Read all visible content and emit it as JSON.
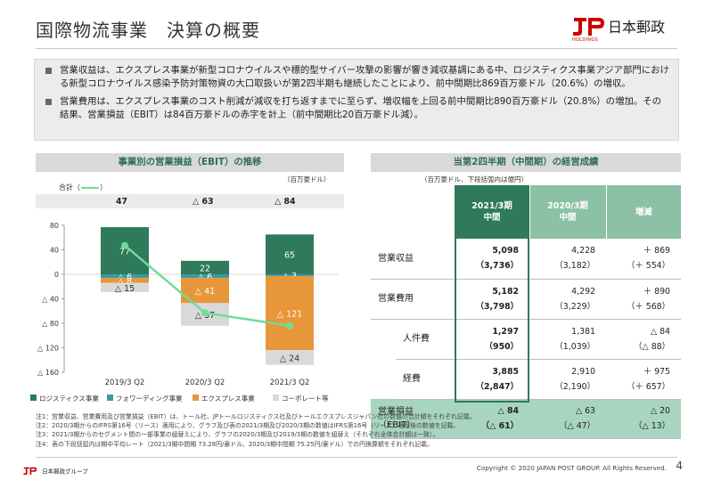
{
  "header": {
    "title": "国際物流事業　決算の概要",
    "logo_text": "日本郵政",
    "logo_sub": "HOLDINGS"
  },
  "summary": {
    "bullet1": "営業収益は、エクスプレス事業が新型コロナウイルスや標的型サイバー攻撃の影響が響き減収基調にある中、ロジスティクス事業アジア部門における新型コロナウイルス感染予防対策物資の大口取扱いが第2四半期も継続したことにより、前中間期比869百万豪ドル（20.6%）の増収。",
    "bullet2": "営業費用は、エクスプレス事業のコスト削減が減収を打ち返すまでに至らず、増収幅を上回る前中間期比890百万豪ドル（20.8%）の増加。その結果、営業損益（EBIT）は84百万豪ドルの赤字を計上（前中間期比20百万豪ドル減）。"
  },
  "left_section": {
    "header": "事業別の営業損益（EBIT）の推移",
    "unit": "（百万豪ドル）",
    "total_label": "合計（",
    "total_label_end": "）",
    "totals": [
      "47",
      "△ 63",
      "△ 84"
    ]
  },
  "chart_data": {
    "type": "bar",
    "stacked": true,
    "categories": [
      "2019/3 Q2",
      "2020/3 Q2",
      "2021/3 Q2"
    ],
    "series": [
      {
        "name": "ロジスティクス事業",
        "color": "#2e7a5a",
        "values": [
          77,
          22,
          65
        ],
        "labels": [
          "77",
          "22",
          "65"
        ]
      },
      {
        "name": "フォワーディング事業",
        "color": "#3a9aa8",
        "values": [
          -6,
          -6,
          -3
        ],
        "labels": [
          "△ 6",
          "△ 6",
          "△ 3"
        ]
      },
      {
        "name": "エクスプレス事業",
        "color": "#e8963a",
        "values": [
          -8,
          -41,
          -121
        ],
        "labels": [
          "△ 8",
          "△ 41",
          "△ 121"
        ]
      },
      {
        "name": "コーポレート等",
        "color": "#d9d9d9",
        "values": [
          -15,
          -37,
          -24
        ],
        "labels": [
          "△ 15",
          "△ 37",
          "△ 24"
        ]
      }
    ],
    "total_line": {
      "color": "#6fdc9b",
      "values": [
        47,
        -63,
        -84
      ]
    },
    "ylim": [
      -160,
      80
    ],
    "yticks": [
      80,
      40,
      0,
      -40,
      -80,
      -120,
      -160
    ],
    "ytick_labels": [
      "80",
      "40",
      "0",
      "△ 40",
      "△ 80",
      "△ 120",
      "△ 160"
    ],
    "grid": false,
    "legend_position": "bottom"
  },
  "right_section": {
    "header": "当第2四半期（中間期）の経営成績",
    "unit": "（百万豪ドル、下段括弧内は億円）",
    "columns": [
      {
        "line1": "2021/3期",
        "line2": "中間"
      },
      {
        "line1": "2020/3期",
        "line2": "中間"
      },
      {
        "line1": "増減",
        "line2": ""
      }
    ],
    "rows": [
      {
        "label": "営業収益",
        "type": "main",
        "cur": "5,098",
        "cur_jpy": "（3,736）",
        "prev": "4,228",
        "prev_jpy": "（3,182）",
        "diff": "＋ 869",
        "diff_jpy": "（＋ 554）"
      },
      {
        "label": "営業費用",
        "type": "main",
        "cur": "5,182",
        "cur_jpy": "（3,798）",
        "prev": "4,292",
        "prev_jpy": "（3,229）",
        "diff": "＋ 890",
        "diff_jpy": "（＋ 568）"
      },
      {
        "label": "人件費",
        "type": "sub",
        "cur": "1,297",
        "cur_jpy": "（950）",
        "prev": "1,381",
        "prev_jpy": "（1,039）",
        "diff": "△ 84",
        "diff_jpy": "（△ 88）"
      },
      {
        "label": "経費",
        "type": "sub",
        "cur": "3,885",
        "cur_jpy": "（2,847）",
        "prev": "2,910",
        "prev_jpy": "（2,190）",
        "diff": "＋ 975",
        "diff_jpy": "（＋ 657）"
      },
      {
        "label": "営業損益",
        "label2": "（EBIT）",
        "type": "ebit",
        "cur": "△ 84",
        "cur_jpy": "（△ 61）",
        "prev": "△ 63",
        "prev_jpy": "（△ 47）",
        "diff": "△ 20",
        "diff_jpy": "（△ 13）"
      }
    ]
  },
  "notes": [
    "注1：営業収益、営業費用及び営業損益（EBIT）は、トール社、JPトールロジスティクス社及びトールエクスプレスジャパン社の数値の合計額をそれぞれ記載。",
    "注2：2020/3期からのIFRS第16号（リース）適用により、グラフ及び表の2021/3期及び2020/3期の数値はIFRS第16号（リース）適用後の数値を記載。",
    "注3：2021/3期からのセグメント間の一部事業の組替えにより、グラフの2020/3期及び2019/3期の数値を組替え（それぞれ全体合計額は一致）。",
    "注4：表の下段括弧内は期中平均レート（2021/3期中間期 73.28円/豪ドル、2020/3期中間期 75.25円/豪ドル）での円換算額をそれぞれ記載。"
  ],
  "footer": {
    "group_name": "日本郵政グループ",
    "copyright": "Copyright © 2020 JAPAN POST GROUP. All Rights Reserved.",
    "page": "4"
  }
}
